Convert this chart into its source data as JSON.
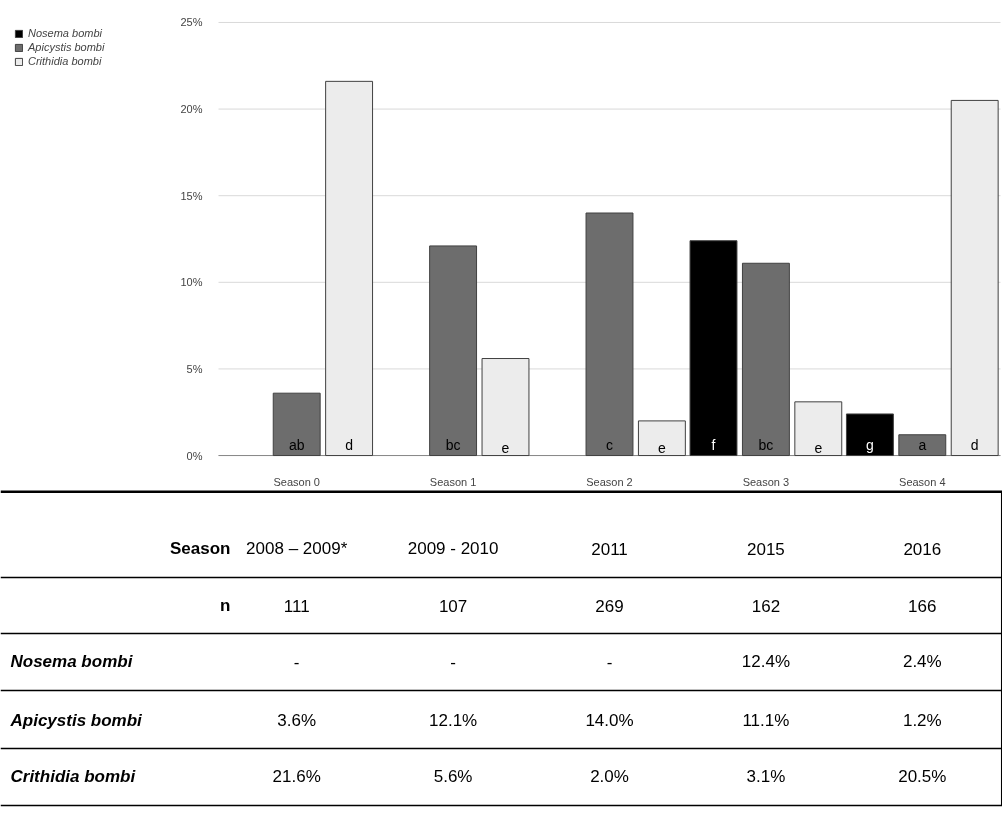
{
  "chart_data": {
    "type": "bar",
    "categories": [
      "Season 0",
      "Season 1",
      "Season 2",
      "Season 3",
      "Season 4"
    ],
    "series": [
      {
        "name": "Nosema bombi",
        "color": "#000000",
        "values": [
          null,
          null,
          null,
          12.4,
          2.4
        ],
        "value_labels": [
          "-",
          "-",
          "-",
          "12.4%",
          "2.4%"
        ]
      },
      {
        "name": "Apicystis bombi",
        "color": "#6d6d6d",
        "values": [
          3.6,
          12.1,
          14.0,
          11.1,
          1.2
        ],
        "value_labels": [
          "3.6%",
          "12.1%",
          "14.0%",
          "11.1%",
          "1.2%"
        ]
      },
      {
        "name": "Crithidia bombi",
        "color": "#ececec",
        "values": [
          21.6,
          5.6,
          2.0,
          3.1,
          20.5
        ],
        "value_labels": [
          "21.6%",
          "5.6%",
          "2.0%",
          "3.1%",
          "20.5%"
        ]
      }
    ],
    "ylim": [
      0,
      25
    ],
    "yticks": [
      {
        "value": 0,
        "label": "0%"
      },
      {
        "value": 5,
        "label": "5%"
      },
      {
        "value": 10,
        "label": "10%"
      },
      {
        "value": 15,
        "label": "15%"
      },
      {
        "value": 20,
        "label": "20%"
      },
      {
        "value": 25,
        "label": "25%"
      }
    ],
    "grid": "y",
    "legend": "top left",
    "annotations": [
      "Season",
      "2008 – 2009*",
      "2009 - 2010",
      "2011",
      "2015",
      "2016",
      "n",
      "111",
      "107",
      "269",
      "162",
      "166",
      "ab",
      "d",
      "bc",
      "e",
      "c",
      "e",
      "f",
      "bc",
      "e",
      "g",
      "a",
      "d"
    ]
  }
}
